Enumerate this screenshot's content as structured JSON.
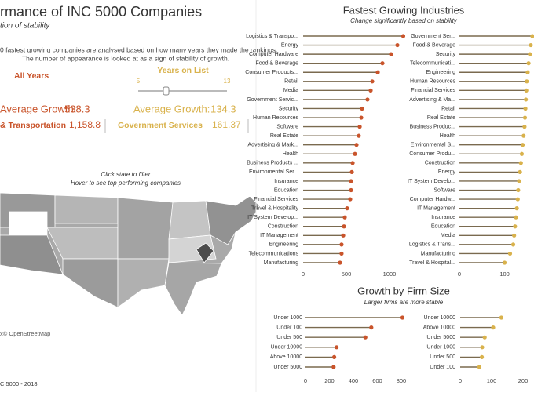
{
  "header": {
    "title": "rmance of INC 5000 Companies",
    "subtitle": "tion of stability",
    "description": [
      "0 fastest growing companies are analysed based on how many years they made the rankings.",
      "The number of appearance is looked at as a sign of stability of growth."
    ]
  },
  "filters": {
    "left_label": "All Years",
    "slider_label": "Years on List",
    "slider_min": 5,
    "slider_max": 13
  },
  "kpis": [
    {
      "label": "Average Growth:",
      "value": "538.3",
      "top_industry": "& Transportation",
      "top_value": "1,158.8"
    },
    {
      "label": "Average Growth:",
      "value": "134.3",
      "top_industry": "Government Services",
      "top_value": "161.37"
    }
  ],
  "map": {
    "instructions": [
      "Click state to filter",
      "Hover to see top performing companies"
    ],
    "attribution": "x© OpenStreetMap"
  },
  "footer": "C 5000 - 2018",
  "chart_data": [
    {
      "type": "lollipop",
      "title": "Fastest Growing Industries",
      "subtitle": "Change significantly based on stability",
      "categories": [
        "Logistics & Transpo...",
        "Energy",
        "Computer Hardware",
        "Food & Beverage",
        "Consumer Products...",
        "Retail",
        "Media",
        "Government Servic...",
        "Security",
        "Human Resources",
        "Software",
        "Real Estate",
        "Advertising & Mark...",
        "Health",
        "Business Products ...",
        "Environmental Ser...",
        "Insurance",
        "Education",
        "Financial Services",
        "Travel & Hospitality",
        "IT System Develop...",
        "Construction",
        "IT Management",
        "Engineering",
        "Telecommunications",
        "Manufacturing"
      ],
      "values": [
        1158.8,
        1091,
        1018,
        918,
        864,
        800,
        782,
        745,
        682,
        673,
        655,
        645,
        618,
        600,
        573,
        564,
        555,
        555,
        545,
        509,
        482,
        473,
        464,
        445,
        445,
        427
      ],
      "color": "#c9542b",
      "xlim": [
        0,
        1200
      ],
      "xticks": [
        0,
        500,
        1000
      ]
    },
    {
      "type": "lollipop",
      "categories": [
        "Government Ser...",
        "Food & Beverage",
        "Security",
        "Telecommunicati...",
        "Engineering",
        "Human Resources",
        "Financial Services",
        "Advertising & Ma...",
        "Retail",
        "Real Estate",
        "Business Produc...",
        "Health",
        "Environmental S...",
        "Consumer Produ...",
        "Construction",
        "Energy",
        "IT System Develo...",
        "Software",
        "Computer Hardw...",
        "IT Management",
        "Insurance",
        "Education",
        "Media",
        "Logistics & Trans...",
        "Manufacturing",
        "Travel & Hospital..."
      ],
      "values": [
        161.37,
        158,
        156,
        153,
        151,
        149,
        148,
        147,
        146,
        145,
        144,
        142,
        140,
        138,
        136,
        134,
        132,
        130,
        129,
        127,
        125,
        123,
        121,
        119,
        112,
        100
      ],
      "color": "#d9b24c",
      "xlim": [
        0,
        165
      ],
      "xticks": [
        0,
        100
      ]
    },
    {
      "type": "lollipop",
      "title": "Growth by Firm Size",
      "subtitle": "Larger firms are more stable",
      "categories": [
        "Under 1000",
        "Under 100",
        "Under 500",
        "Under 10000",
        "Above 10000",
        "Under 5000"
      ],
      "values": [
        810,
        550,
        500,
        260,
        240,
        235
      ],
      "color": "#c9542b",
      "xlim": [
        0,
        820
      ],
      "xticks": [
        0,
        200,
        400,
        600,
        800
      ]
    },
    {
      "type": "lollipop",
      "categories": [
        "Under 10000",
        "Above 10000",
        "Under 5000",
        "Under 1000",
        "Under 500",
        "Under 100"
      ],
      "values": [
        131,
        105,
        78,
        70,
        69,
        61
      ],
      "color": "#d9b24c",
      "xlim": [
        0,
        200
      ],
      "xticks": [
        0,
        100,
        200
      ]
    }
  ]
}
